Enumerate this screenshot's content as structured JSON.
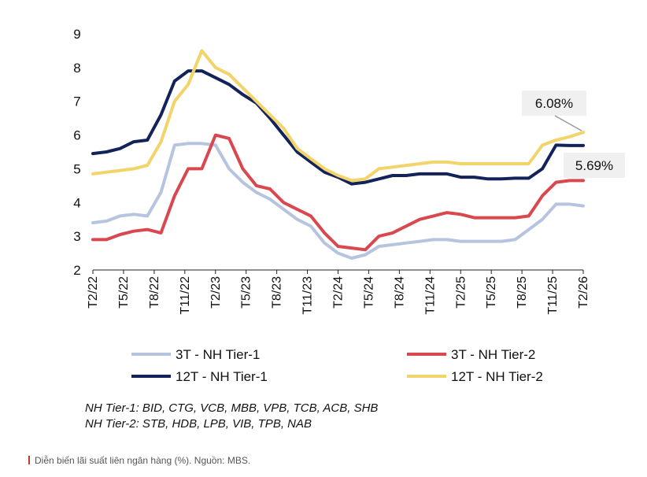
{
  "chart_data": {
    "type": "line",
    "title": "",
    "xlabel": "",
    "ylabel": "",
    "ylim": [
      2,
      9
    ],
    "y_ticks": [
      "2",
      "3",
      "4",
      "5",
      "6",
      "7",
      "8",
      "9"
    ],
    "x_ticks": [
      "T2/22",
      "T5/22",
      "T8/22",
      "T11/22",
      "T2/23",
      "T5/23",
      "T8/23",
      "T11/23",
      "T2/24",
      "T5/24",
      "T8/24",
      "T11/24",
      "T2/25",
      "T5/25",
      "T8/25",
      "T11/25",
      "T2/26"
    ],
    "grid": false,
    "legend_position": "bottom",
    "series": [
      {
        "name": "3T - NH Tier-1",
        "color": "#b7c4e0",
        "points": [
          [
            0,
            3.4
          ],
          [
            1,
            3.45
          ],
          [
            2,
            3.6
          ],
          [
            3,
            3.65
          ],
          [
            4,
            3.6
          ],
          [
            5,
            4.3
          ],
          [
            6,
            5.7
          ],
          [
            7,
            5.75
          ],
          [
            8,
            5.75
          ],
          [
            9,
            5.7
          ],
          [
            10,
            5.0
          ],
          [
            11,
            4.6
          ],
          [
            12,
            4.3
          ],
          [
            13,
            4.1
          ],
          [
            14,
            3.8
          ],
          [
            15,
            3.5
          ],
          [
            16,
            3.3
          ],
          [
            17,
            2.8
          ],
          [
            18,
            2.5
          ],
          [
            19,
            2.35
          ],
          [
            20,
            2.45
          ],
          [
            21,
            2.7
          ],
          [
            22,
            2.75
          ],
          [
            23,
            2.8
          ],
          [
            24,
            2.85
          ],
          [
            25,
            2.9
          ],
          [
            26,
            2.9
          ],
          [
            27,
            2.85
          ],
          [
            28,
            2.85
          ],
          [
            29,
            2.85
          ],
          [
            30,
            2.85
          ],
          [
            31,
            2.9
          ],
          [
            32,
            3.2
          ],
          [
            33,
            3.5
          ],
          [
            34,
            3.95
          ],
          [
            35,
            3.95
          ],
          [
            36,
            3.9
          ]
        ]
      },
      {
        "name": "3T - NH Tier-2",
        "color": "#d9474f",
        "points": [
          [
            0,
            2.9
          ],
          [
            1,
            2.9
          ],
          [
            2,
            3.05
          ],
          [
            3,
            3.15
          ],
          [
            4,
            3.2
          ],
          [
            5,
            3.1
          ],
          [
            6,
            4.2
          ],
          [
            7,
            5.0
          ],
          [
            8,
            5.0
          ],
          [
            9,
            6.0
          ],
          [
            10,
            5.9
          ],
          [
            11,
            5.0
          ],
          [
            12,
            4.5
          ],
          [
            13,
            4.4
          ],
          [
            14,
            4.0
          ],
          [
            15,
            3.8
          ],
          [
            16,
            3.6
          ],
          [
            17,
            3.1
          ],
          [
            18,
            2.7
          ],
          [
            19,
            2.65
          ],
          [
            20,
            2.6
          ],
          [
            21,
            3.0
          ],
          [
            22,
            3.1
          ],
          [
            23,
            3.3
          ],
          [
            24,
            3.5
          ],
          [
            25,
            3.6
          ],
          [
            26,
            3.7
          ],
          [
            27,
            3.65
          ],
          [
            28,
            3.55
          ],
          [
            29,
            3.55
          ],
          [
            30,
            3.55
          ],
          [
            31,
            3.55
          ],
          [
            32,
            3.6
          ],
          [
            33,
            4.2
          ],
          [
            34,
            4.6
          ],
          [
            35,
            4.65
          ],
          [
            36,
            4.65
          ]
        ]
      },
      {
        "name": "12T - NH Tier-1",
        "color": "#13235a",
        "points": [
          [
            0,
            5.45
          ],
          [
            1,
            5.5
          ],
          [
            2,
            5.6
          ],
          [
            3,
            5.8
          ],
          [
            4,
            5.85
          ],
          [
            5,
            6.6
          ],
          [
            6,
            7.6
          ],
          [
            7,
            7.9
          ],
          [
            8,
            7.9
          ],
          [
            9,
            7.7
          ],
          [
            10,
            7.5
          ],
          [
            11,
            7.2
          ],
          [
            12,
            6.95
          ],
          [
            13,
            6.5
          ],
          [
            14,
            6.0
          ],
          [
            15,
            5.5
          ],
          [
            16,
            5.2
          ],
          [
            17,
            4.9
          ],
          [
            18,
            4.75
          ],
          [
            19,
            4.55
          ],
          [
            20,
            4.6
          ],
          [
            21,
            4.7
          ],
          [
            22,
            4.8
          ],
          [
            23,
            4.8
          ],
          [
            24,
            4.85
          ],
          [
            25,
            4.85
          ],
          [
            26,
            4.85
          ],
          [
            27,
            4.75
          ],
          [
            28,
            4.75
          ],
          [
            29,
            4.7
          ],
          [
            30,
            4.7
          ],
          [
            31,
            4.72
          ],
          [
            32,
            4.72
          ],
          [
            33,
            5.0
          ],
          [
            34,
            5.7
          ],
          [
            35,
            5.69
          ],
          [
            36,
            5.69
          ]
        ]
      },
      {
        "name": "12T - NH Tier-2",
        "color": "#f2d46b",
        "points": [
          [
            0,
            4.85
          ],
          [
            1,
            4.9
          ],
          [
            2,
            4.95
          ],
          [
            3,
            5.0
          ],
          [
            4,
            5.1
          ],
          [
            5,
            5.8
          ],
          [
            6,
            7.0
          ],
          [
            7,
            7.5
          ],
          [
            8,
            8.5
          ],
          [
            9,
            8.0
          ],
          [
            10,
            7.8
          ],
          [
            11,
            7.4
          ],
          [
            12,
            7.0
          ],
          [
            13,
            6.6
          ],
          [
            14,
            6.2
          ],
          [
            15,
            5.6
          ],
          [
            16,
            5.3
          ],
          [
            17,
            5.0
          ],
          [
            18,
            4.8
          ],
          [
            19,
            4.65
          ],
          [
            20,
            4.7
          ],
          [
            21,
            5.0
          ],
          [
            22,
            5.05
          ],
          [
            23,
            5.1
          ],
          [
            24,
            5.15
          ],
          [
            25,
            5.2
          ],
          [
            26,
            5.2
          ],
          [
            27,
            5.15
          ],
          [
            28,
            5.15
          ],
          [
            29,
            5.15
          ],
          [
            30,
            5.15
          ],
          [
            31,
            5.15
          ],
          [
            32,
            5.15
          ],
          [
            33,
            5.7
          ],
          [
            34,
            5.85
          ],
          [
            35,
            5.95
          ],
          [
            36,
            6.08
          ]
        ]
      }
    ],
    "annotations": [
      {
        "text": "6.08%",
        "series": "12T - NH Tier-2"
      },
      {
        "text": "5.69%",
        "series": "12T - NH Tier-1"
      }
    ]
  },
  "notes": {
    "tier1": "NH Tier-1: BID, CTG, VCB, MBB, VPB, TCB, ACB, SHB",
    "tier2": "NH Tier-2: STB, HDB, LPB, VIB, TPB, NAB"
  },
  "caption": "Diễn biến lãi suất liên ngân hàng (%). Nguồn: MBS."
}
